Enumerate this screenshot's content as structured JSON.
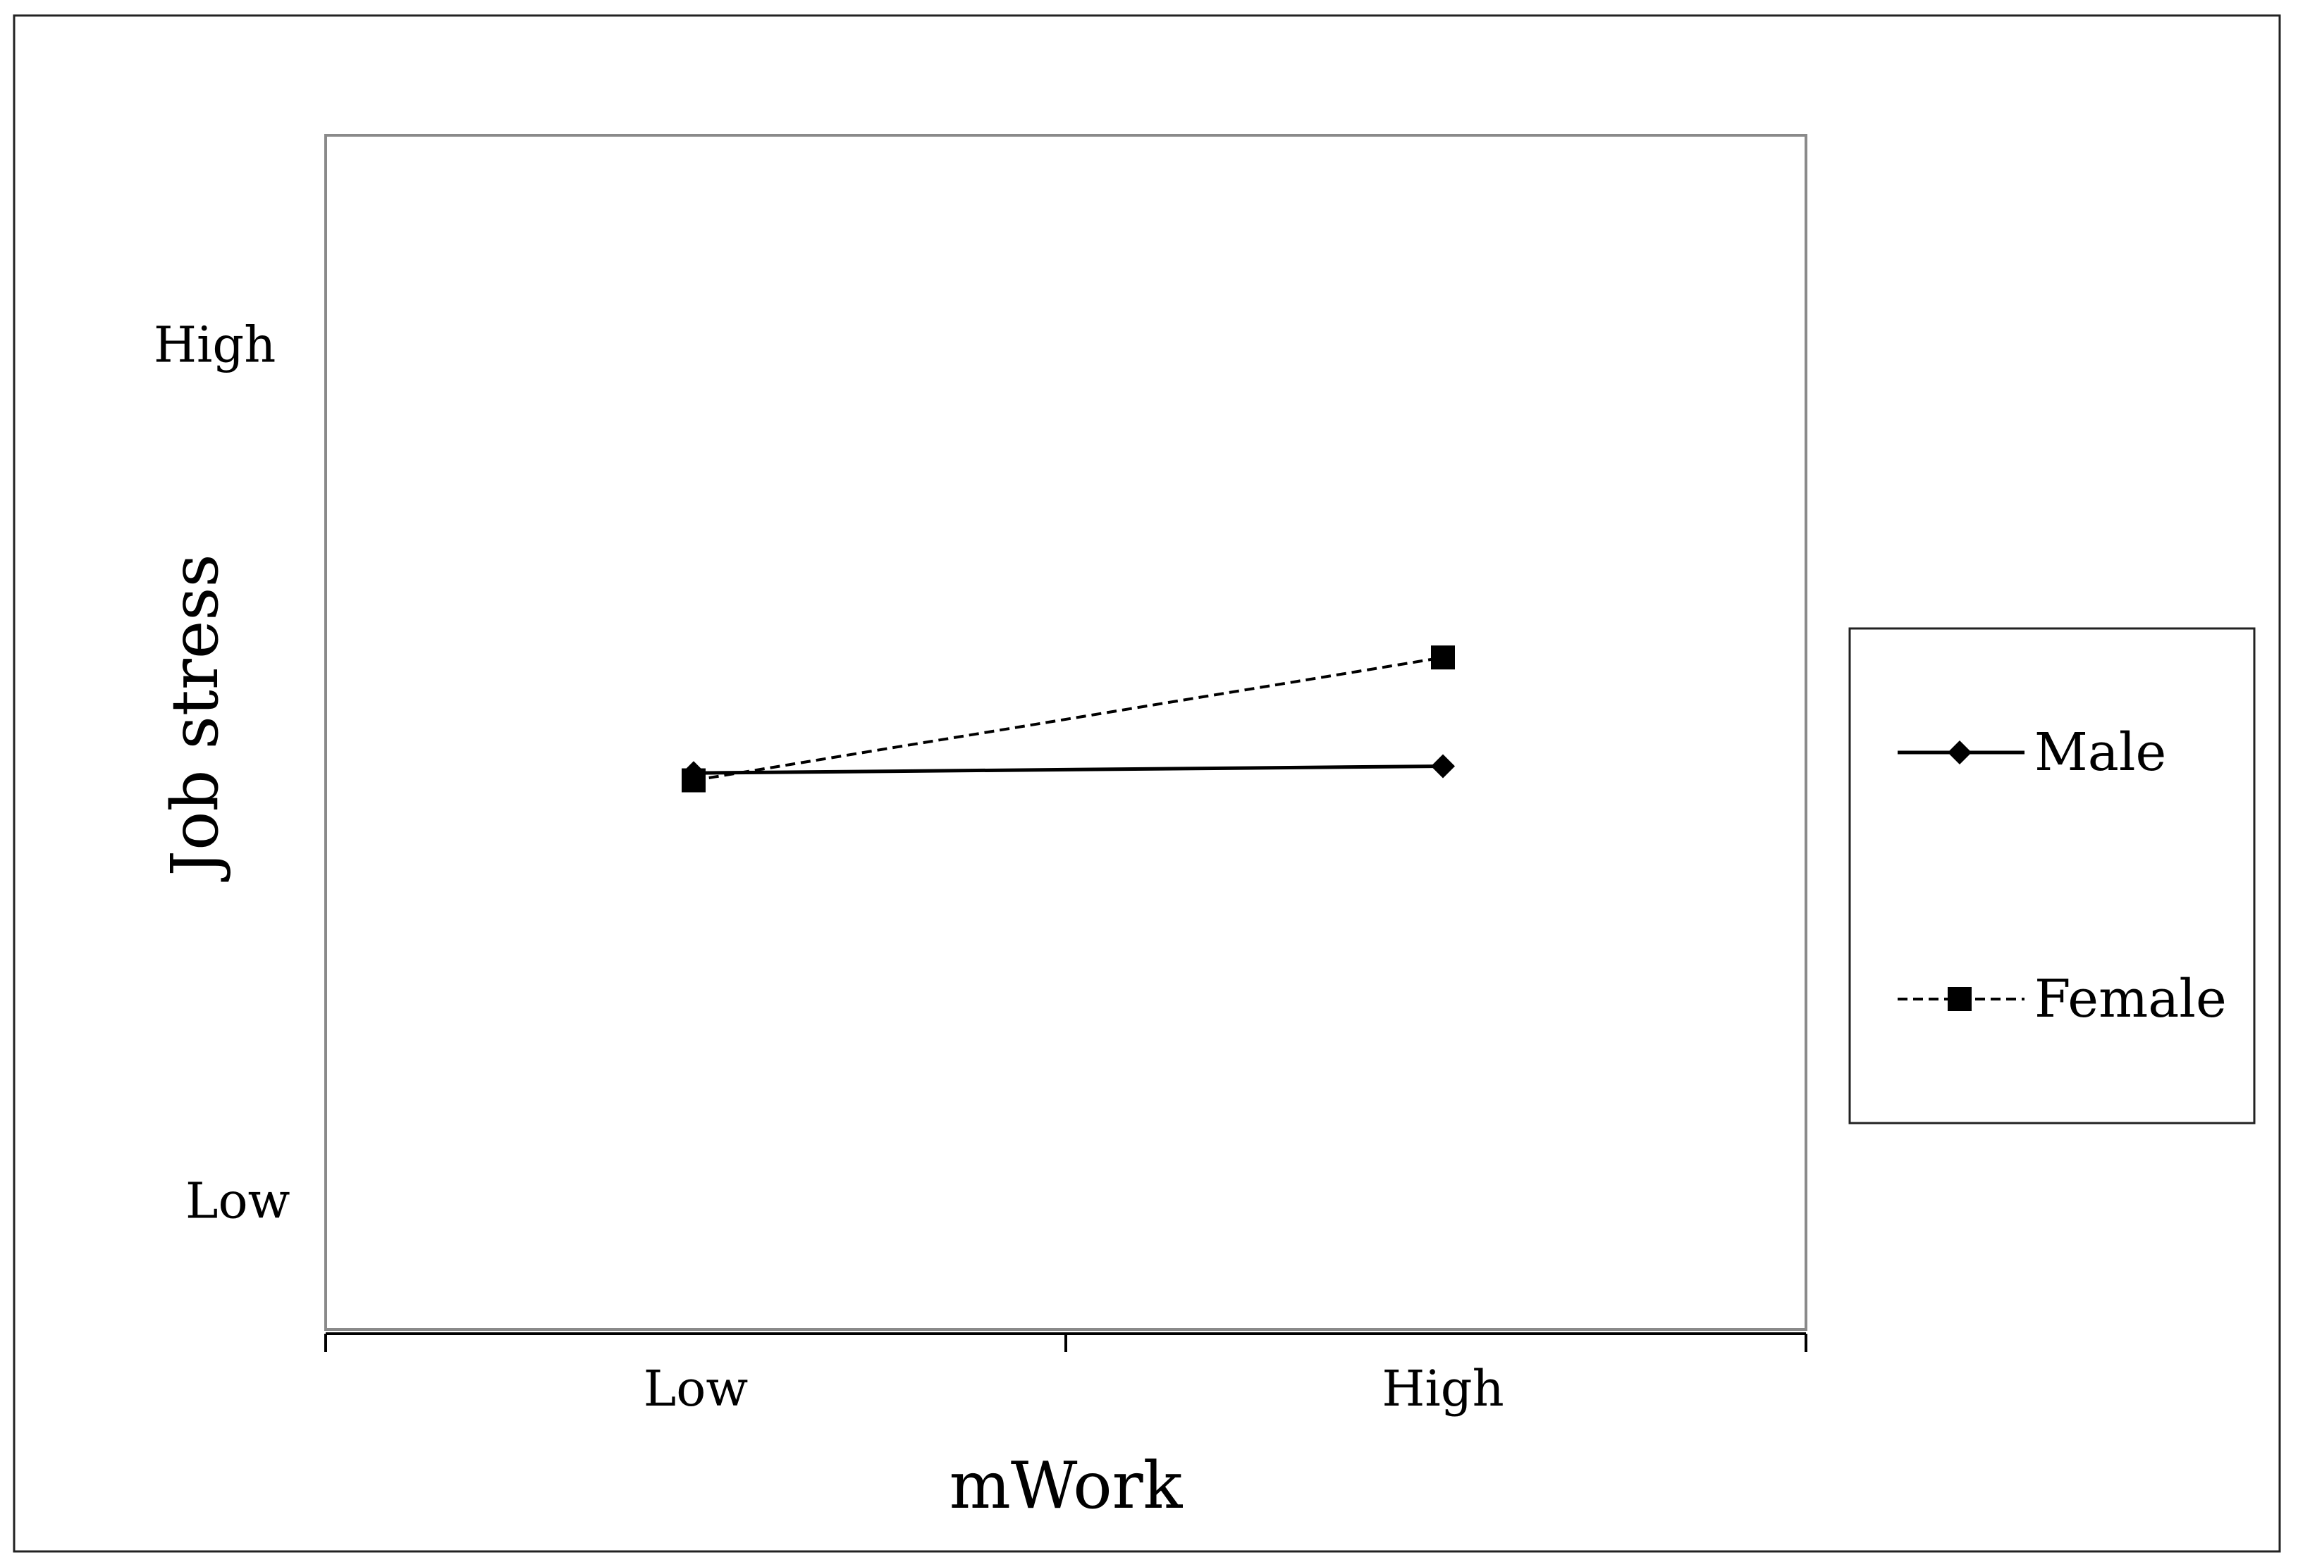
{
  "chart_data": {
    "type": "line",
    "title": "",
    "xlabel": "mWork",
    "ylabel": "Job stress",
    "categories": [
      "Low",
      "High"
    ],
    "y_tick_labels": [
      "High",
      "Low"
    ],
    "y_tick_values": [
      1,
      -1
    ],
    "ylim": [
      -1.3,
      1.49
    ],
    "grid": false,
    "legend_position": "right",
    "series": [
      {
        "name": "Male",
        "values": [
          0,
          0.016
        ],
        "line_style": "solid",
        "marker": "diamond",
        "color": "#000000"
      },
      {
        "name": "Female",
        "values": [
          -0.017,
          0.27
        ],
        "line_style": "dashed",
        "marker": "square",
        "color": "#000000"
      }
    ]
  }
}
